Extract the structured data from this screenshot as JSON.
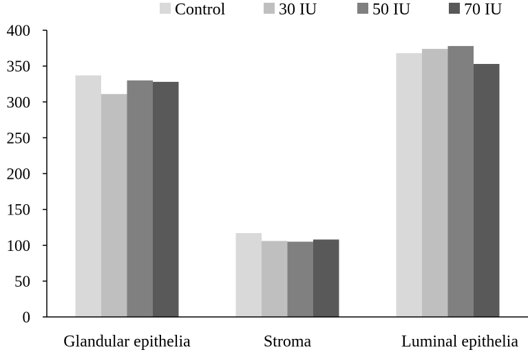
{
  "chart_data": {
    "type": "bar",
    "title": "",
    "xlabel": "",
    "ylabel": "",
    "categories": [
      "Glandular epithelia",
      "Stroma",
      "Luminal epithelia"
    ],
    "series": [
      {
        "name": "Control",
        "color": "#d9d9d9",
        "values": [
          337,
          117,
          368
        ]
      },
      {
        "name": "30 IU",
        "color": "#bfbfbf",
        "values": [
          311,
          106,
          374
        ]
      },
      {
        "name": "50 IU",
        "color": "#808080",
        "values": [
          330,
          105,
          378
        ]
      },
      {
        "name": "70 IU",
        "color": "#595959",
        "values": [
          328,
          108,
          353
        ]
      }
    ],
    "ylim": [
      0,
      400
    ],
    "yticks": [
      0,
      50,
      100,
      150,
      200,
      250,
      300,
      350,
      400
    ],
    "grid": false,
    "legend": "top"
  }
}
